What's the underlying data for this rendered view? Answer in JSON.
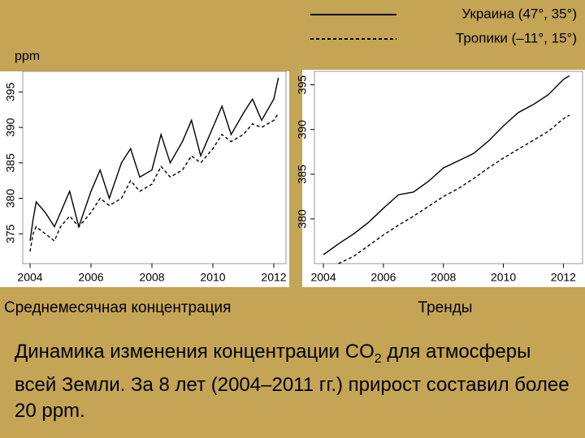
{
  "legend_corner": "top-right",
  "y_label": "ppm",
  "paragraph": {
    "before": "Динамика изменения концентрации CO",
    "subscript": "2",
    "after": " для атмосферы всей Земли. За 8 лет (2004–2011 гг.) прирост составил более 20 ppm."
  },
  "chart_data": [
    {
      "type": "line",
      "title": "Среднемесячная концентрация",
      "x": [
        2004,
        2004.1,
        2004.2,
        2004.5,
        2004.8,
        2005,
        2005.3,
        2005.6,
        2006,
        2006.3,
        2006.6,
        2007,
        2007.3,
        2007.6,
        2008,
        2008.3,
        2008.6,
        2009,
        2009.3,
        2009.6,
        2010,
        2010.3,
        2010.6,
        2011,
        2011.3,
        2011.6,
        2012,
        2012.15
      ],
      "series": [
        {
          "name": "Украина (47°, 35°)",
          "color": "#000000",
          "dash": "solid",
          "values": [
            374,
            377,
            379.5,
            378,
            376,
            378,
            381,
            376,
            381,
            384,
            380,
            385,
            387,
            383,
            384,
            389,
            385,
            388,
            391,
            386,
            390,
            393,
            389,
            392,
            394,
            391,
            394,
            397
          ]
        },
        {
          "name": "Тропики (–11°, 15°)",
          "color": "#000000",
          "dash": "dashed",
          "values": [
            372.5,
            375,
            376,
            375,
            374,
            376,
            377.5,
            376,
            378,
            380,
            379,
            380,
            382.5,
            381,
            382,
            384.5,
            383,
            384,
            386,
            385,
            387,
            389,
            388,
            389,
            390.5,
            390,
            391,
            392
          ]
        }
      ],
      "xlim": [
        2003.76,
        2012.4
      ],
      "xticks": [
        2004,
        2006,
        2008,
        2010,
        2012
      ],
      "ylim": [
        370.8,
        397.9
      ],
      "yticks": [
        375,
        380,
        385,
        390,
        395
      ]
    },
    {
      "type": "line",
      "title": "Тренды",
      "x": [
        2004,
        2004.5,
        2005,
        2005.5,
        2006,
        2006.5,
        2007,
        2007.5,
        2008,
        2008.5,
        2009,
        2009.5,
        2010,
        2010.5,
        2011,
        2011.5,
        2012,
        2012.2
      ],
      "series": [
        {
          "color": "#000000",
          "dash": "solid",
          "values": [
            376,
            377.2,
            378.3,
            379.6,
            381.2,
            382.7,
            383,
            384.2,
            385.7,
            386.5,
            387.3,
            388.7,
            390.4,
            391.9,
            392.8,
            393.9,
            395.6,
            396
          ]
        },
        {
          "color": "#000000",
          "dash": "dashed",
          "values": [
            null,
            375,
            375.8,
            377,
            378.2,
            379.3,
            380.3,
            381.4,
            382.5,
            383.4,
            384.5,
            385.7,
            386.8,
            387.8,
            388.8,
            389.8,
            391.2,
            391.6
          ]
        }
      ],
      "xlim": [
        2003.7,
        2012.64
      ],
      "xticks": [
        2004,
        2006,
        2008,
        2010,
        2012
      ],
      "ylim": [
        375,
        396.5
      ],
      "yticks": [
        380,
        385,
        390,
        395
      ]
    }
  ]
}
